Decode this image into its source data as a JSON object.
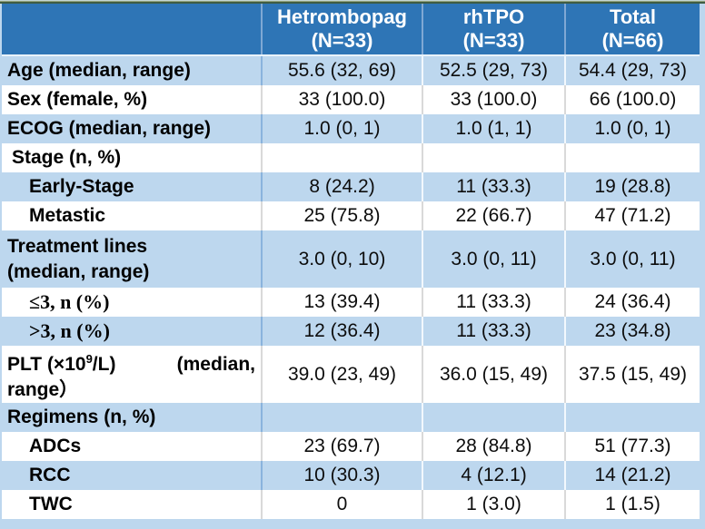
{
  "header": {
    "corner": "",
    "columns": [
      {
        "title": "Hetrombopag",
        "subtitle": "(N=33)"
      },
      {
        "title": "rhTPO",
        "subtitle": "(N=33)"
      },
      {
        "title": "Total",
        "subtitle": "(N=66)"
      }
    ]
  },
  "rows": [
    {
      "label": "Age (median, range)",
      "values": [
        "55.6 (32, 69)",
        "52.5 (29, 73)",
        "54.4 (29, 73)"
      ]
    },
    {
      "label": "Sex (female, %)",
      "values": [
        "33 (100.0)",
        "33 (100.0)",
        "66 (100.0)"
      ]
    },
    {
      "label": "ECOG (median, range)",
      "values": [
        "1.0 (0, 1)",
        "1.0 (1, 1)",
        "1.0 (0, 1)"
      ]
    },
    {
      "label": "Stage (n, %)",
      "values": [
        "",
        "",
        ""
      ]
    },
    {
      "label": "Early-Stage",
      "values": [
        "8 (24.2)",
        "11 (33.3)",
        "19 (28.8)"
      ]
    },
    {
      "label": "Metastic",
      "values": [
        "25 (75.8)",
        "22 (66.7)",
        "47 (71.2)"
      ]
    },
    {
      "label_line1": "Treatment lines",
      "label_line2": "(median, range)",
      "values": [
        "3.0 (0, 10)",
        "3.0 (0, 11)",
        "3.0 (0, 11)"
      ]
    },
    {
      "label": "≤3, n (%)",
      "values": [
        "13 (39.4)",
        "11 (33.3)",
        "24 (36.4)"
      ]
    },
    {
      "label": ">3, n (%)",
      "values": [
        "12 (36.4)",
        "11 (33.3)",
        "23 (34.8)"
      ]
    },
    {
      "label_parts": {
        "p1": "PLT (×10",
        "sup": "9",
        "p2": "/L)",
        "p3": "(median,",
        "line2": "range）"
      },
      "values": [
        "39.0 (23, 49)",
        "36.0 (15, 49)",
        "37.5 (15, 49)"
      ]
    },
    {
      "label": "Regimens (n, %)",
      "values": [
        "",
        "",
        ""
      ]
    },
    {
      "label": "ADCs",
      "values": [
        "23 (69.7)",
        "28 (84.8)",
        "51 (77.3)"
      ]
    },
    {
      "label": "RCC",
      "values": [
        "10 (30.3)",
        "4 (12.1)",
        "14 (21.2)"
      ]
    },
    {
      "label": "TWC",
      "values": [
        "0",
        "1 (3.0)",
        "1 (1.5)"
      ]
    }
  ],
  "colors": {
    "header_bg": "#2e75b6",
    "row_blue": "#bdd7ee",
    "row_white": "#ffffff",
    "header_text": "#ffffff",
    "body_text": "#000000",
    "top_edge_dark": "#3f5c43"
  }
}
